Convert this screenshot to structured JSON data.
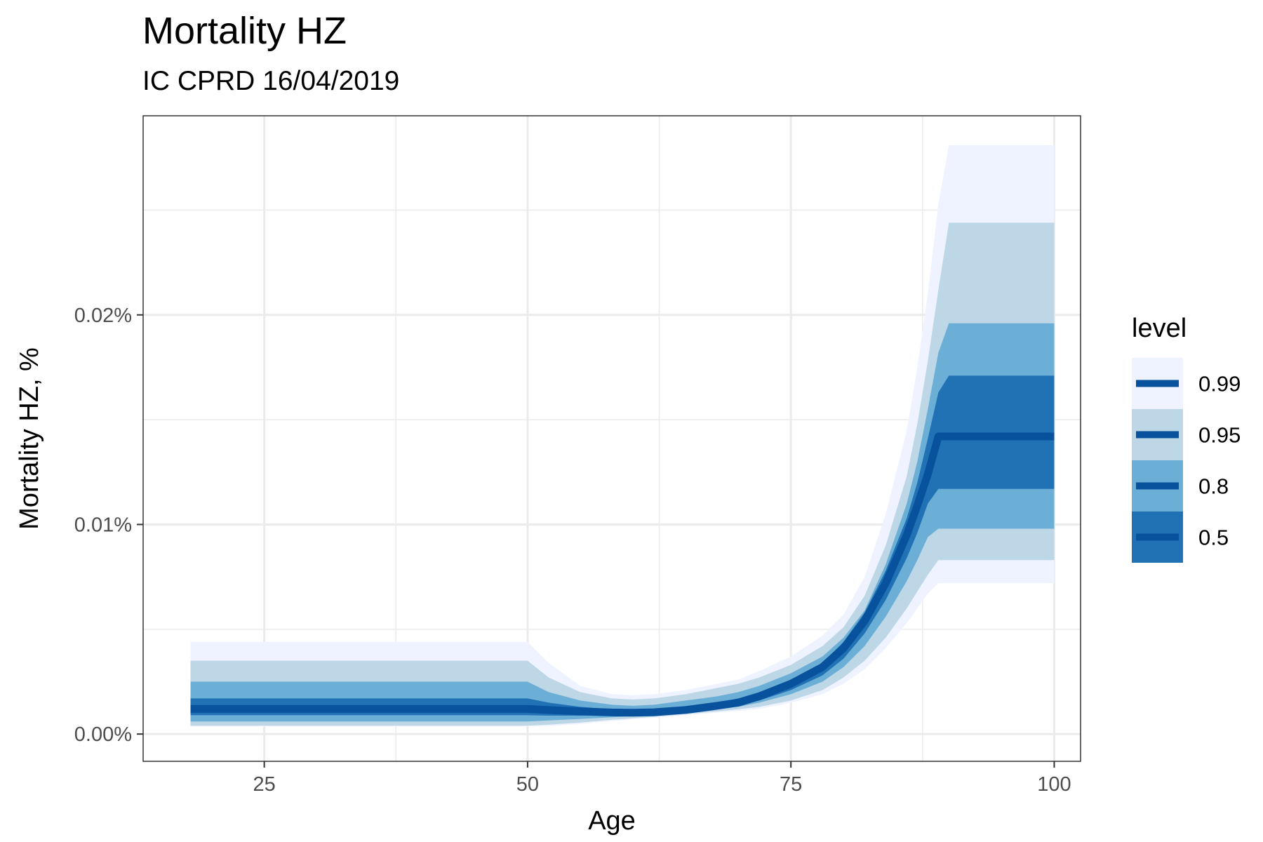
{
  "chart_data": {
    "type": "area",
    "title": "Mortality HZ",
    "subtitle": "IC CPRD 16/04/2019",
    "xlabel": "Age",
    "ylabel": "Mortality HZ, %",
    "xlim": [
      13.5,
      102.5
    ],
    "ylim": [
      -0.0013,
      0.0295
    ],
    "x_ticks": [
      25,
      50,
      75,
      100
    ],
    "x_tick_labels": [
      "25",
      "50",
      "75",
      "100"
    ],
    "y_ticks": [
      0.0,
      0.01,
      0.02
    ],
    "y_tick_labels": [
      "0.00%",
      "0.01%",
      "0.02%"
    ],
    "grid": true,
    "legend": {
      "title": "level",
      "position": "right",
      "entries": [
        {
          "label": "0.99",
          "color": "#eff3ff"
        },
        {
          "label": "0.95",
          "color": "#bdd7e7"
        },
        {
          "label": "0.8",
          "color": "#6baed6"
        },
        {
          "label": "0.5",
          "color": "#2171b5"
        }
      ]
    },
    "median_color": "#08519c",
    "x": [
      18,
      20,
      25,
      30,
      35,
      40,
      45,
      50,
      52,
      55,
      58,
      60,
      62,
      65,
      68,
      70,
      72,
      75,
      78,
      80,
      82,
      84,
      86,
      87,
      88,
      89,
      90,
      95,
      100
    ],
    "median": [
      0.0012,
      0.0012,
      0.0012,
      0.0012,
      0.0012,
      0.0012,
      0.0012,
      0.0012,
      0.00115,
      0.00108,
      0.00103,
      0.00102,
      0.00104,
      0.00115,
      0.00135,
      0.0015,
      0.0018,
      0.0024,
      0.0032,
      0.0041,
      0.0054,
      0.0072,
      0.0095,
      0.0109,
      0.0124,
      0.0142,
      0.0142,
      0.0142,
      0.0142
    ],
    "bands": [
      {
        "level": "0.99",
        "lower": [
          0.00036,
          0.00036,
          0.00036,
          0.00036,
          0.00036,
          0.00036,
          0.00036,
          0.00036,
          0.00038,
          0.00048,
          0.00062,
          0.0007,
          0.00078,
          0.0009,
          0.00102,
          0.0011,
          0.0012,
          0.0015,
          0.0019,
          0.0024,
          0.0031,
          0.0041,
          0.0053,
          0.006,
          0.0067,
          0.0072,
          0.0072,
          0.0072,
          0.0072
        ],
        "upper": [
          0.0044,
          0.0044,
          0.0044,
          0.0044,
          0.0044,
          0.0044,
          0.0044,
          0.0044,
          0.0034,
          0.0023,
          0.0019,
          0.00185,
          0.0019,
          0.0021,
          0.0024,
          0.0026,
          0.003,
          0.0037,
          0.0047,
          0.0057,
          0.0075,
          0.0105,
          0.0145,
          0.0175,
          0.021,
          0.0253,
          0.0281,
          0.0281,
          0.0281
        ]
      },
      {
        "level": "0.95",
        "lower": [
          0.0004,
          0.0004,
          0.0004,
          0.0004,
          0.0004,
          0.0004,
          0.0004,
          0.0004,
          0.00045,
          0.00055,
          0.00068,
          0.00075,
          0.00082,
          0.00095,
          0.00108,
          0.00118,
          0.0013,
          0.0016,
          0.0021,
          0.0027,
          0.0035,
          0.0046,
          0.006,
          0.0068,
          0.0076,
          0.0083,
          0.0083,
          0.0083,
          0.0083
        ],
        "upper": [
          0.0035,
          0.0035,
          0.0035,
          0.0035,
          0.0035,
          0.0035,
          0.0035,
          0.0035,
          0.0027,
          0.002,
          0.0017,
          0.00165,
          0.0017,
          0.0019,
          0.0022,
          0.0024,
          0.0027,
          0.0033,
          0.0042,
          0.0051,
          0.0066,
          0.009,
          0.0123,
          0.0148,
          0.0178,
          0.0212,
          0.0244,
          0.0244,
          0.0244
        ]
      },
      {
        "level": "0.8",
        "lower": [
          0.0006,
          0.0006,
          0.0006,
          0.0006,
          0.0006,
          0.0006,
          0.0006,
          0.0006,
          0.00065,
          0.00072,
          0.0008,
          0.00085,
          0.0009,
          0.00102,
          0.00118,
          0.0013,
          0.0015,
          0.0019,
          0.0025,
          0.0032,
          0.0042,
          0.0056,
          0.0073,
          0.0083,
          0.0094,
          0.0098,
          0.0098,
          0.0098,
          0.0098
        ],
        "upper": [
          0.0025,
          0.0025,
          0.0025,
          0.0025,
          0.0025,
          0.0025,
          0.0025,
          0.0025,
          0.002,
          0.0016,
          0.0014,
          0.00135,
          0.0014,
          0.0016,
          0.0018,
          0.002,
          0.0023,
          0.0029,
          0.0037,
          0.0046,
          0.0059,
          0.0081,
          0.011,
          0.013,
          0.0155,
          0.0182,
          0.0196,
          0.0196,
          0.0196
        ]
      },
      {
        "level": "0.5",
        "lower": [
          0.0009,
          0.0009,
          0.0009,
          0.0009,
          0.0009,
          0.0009,
          0.0009,
          0.0009,
          0.00088,
          0.00088,
          0.0009,
          0.00092,
          0.00095,
          0.00108,
          0.00125,
          0.0014,
          0.0016,
          0.0021,
          0.0028,
          0.0036,
          0.0048,
          0.0064,
          0.0084,
          0.0096,
          0.011,
          0.0117,
          0.0117,
          0.0117,
          0.0117
        ],
        "upper": [
          0.0017,
          0.0017,
          0.0017,
          0.0017,
          0.0017,
          0.0017,
          0.0017,
          0.0017,
          0.0015,
          0.0013,
          0.00118,
          0.00115,
          0.00118,
          0.0013,
          0.0015,
          0.0017,
          0.002,
          0.0026,
          0.0034,
          0.0044,
          0.0058,
          0.0078,
          0.0103,
          0.012,
          0.0141,
          0.0163,
          0.0171,
          0.0171,
          0.0171
        ]
      }
    ]
  }
}
